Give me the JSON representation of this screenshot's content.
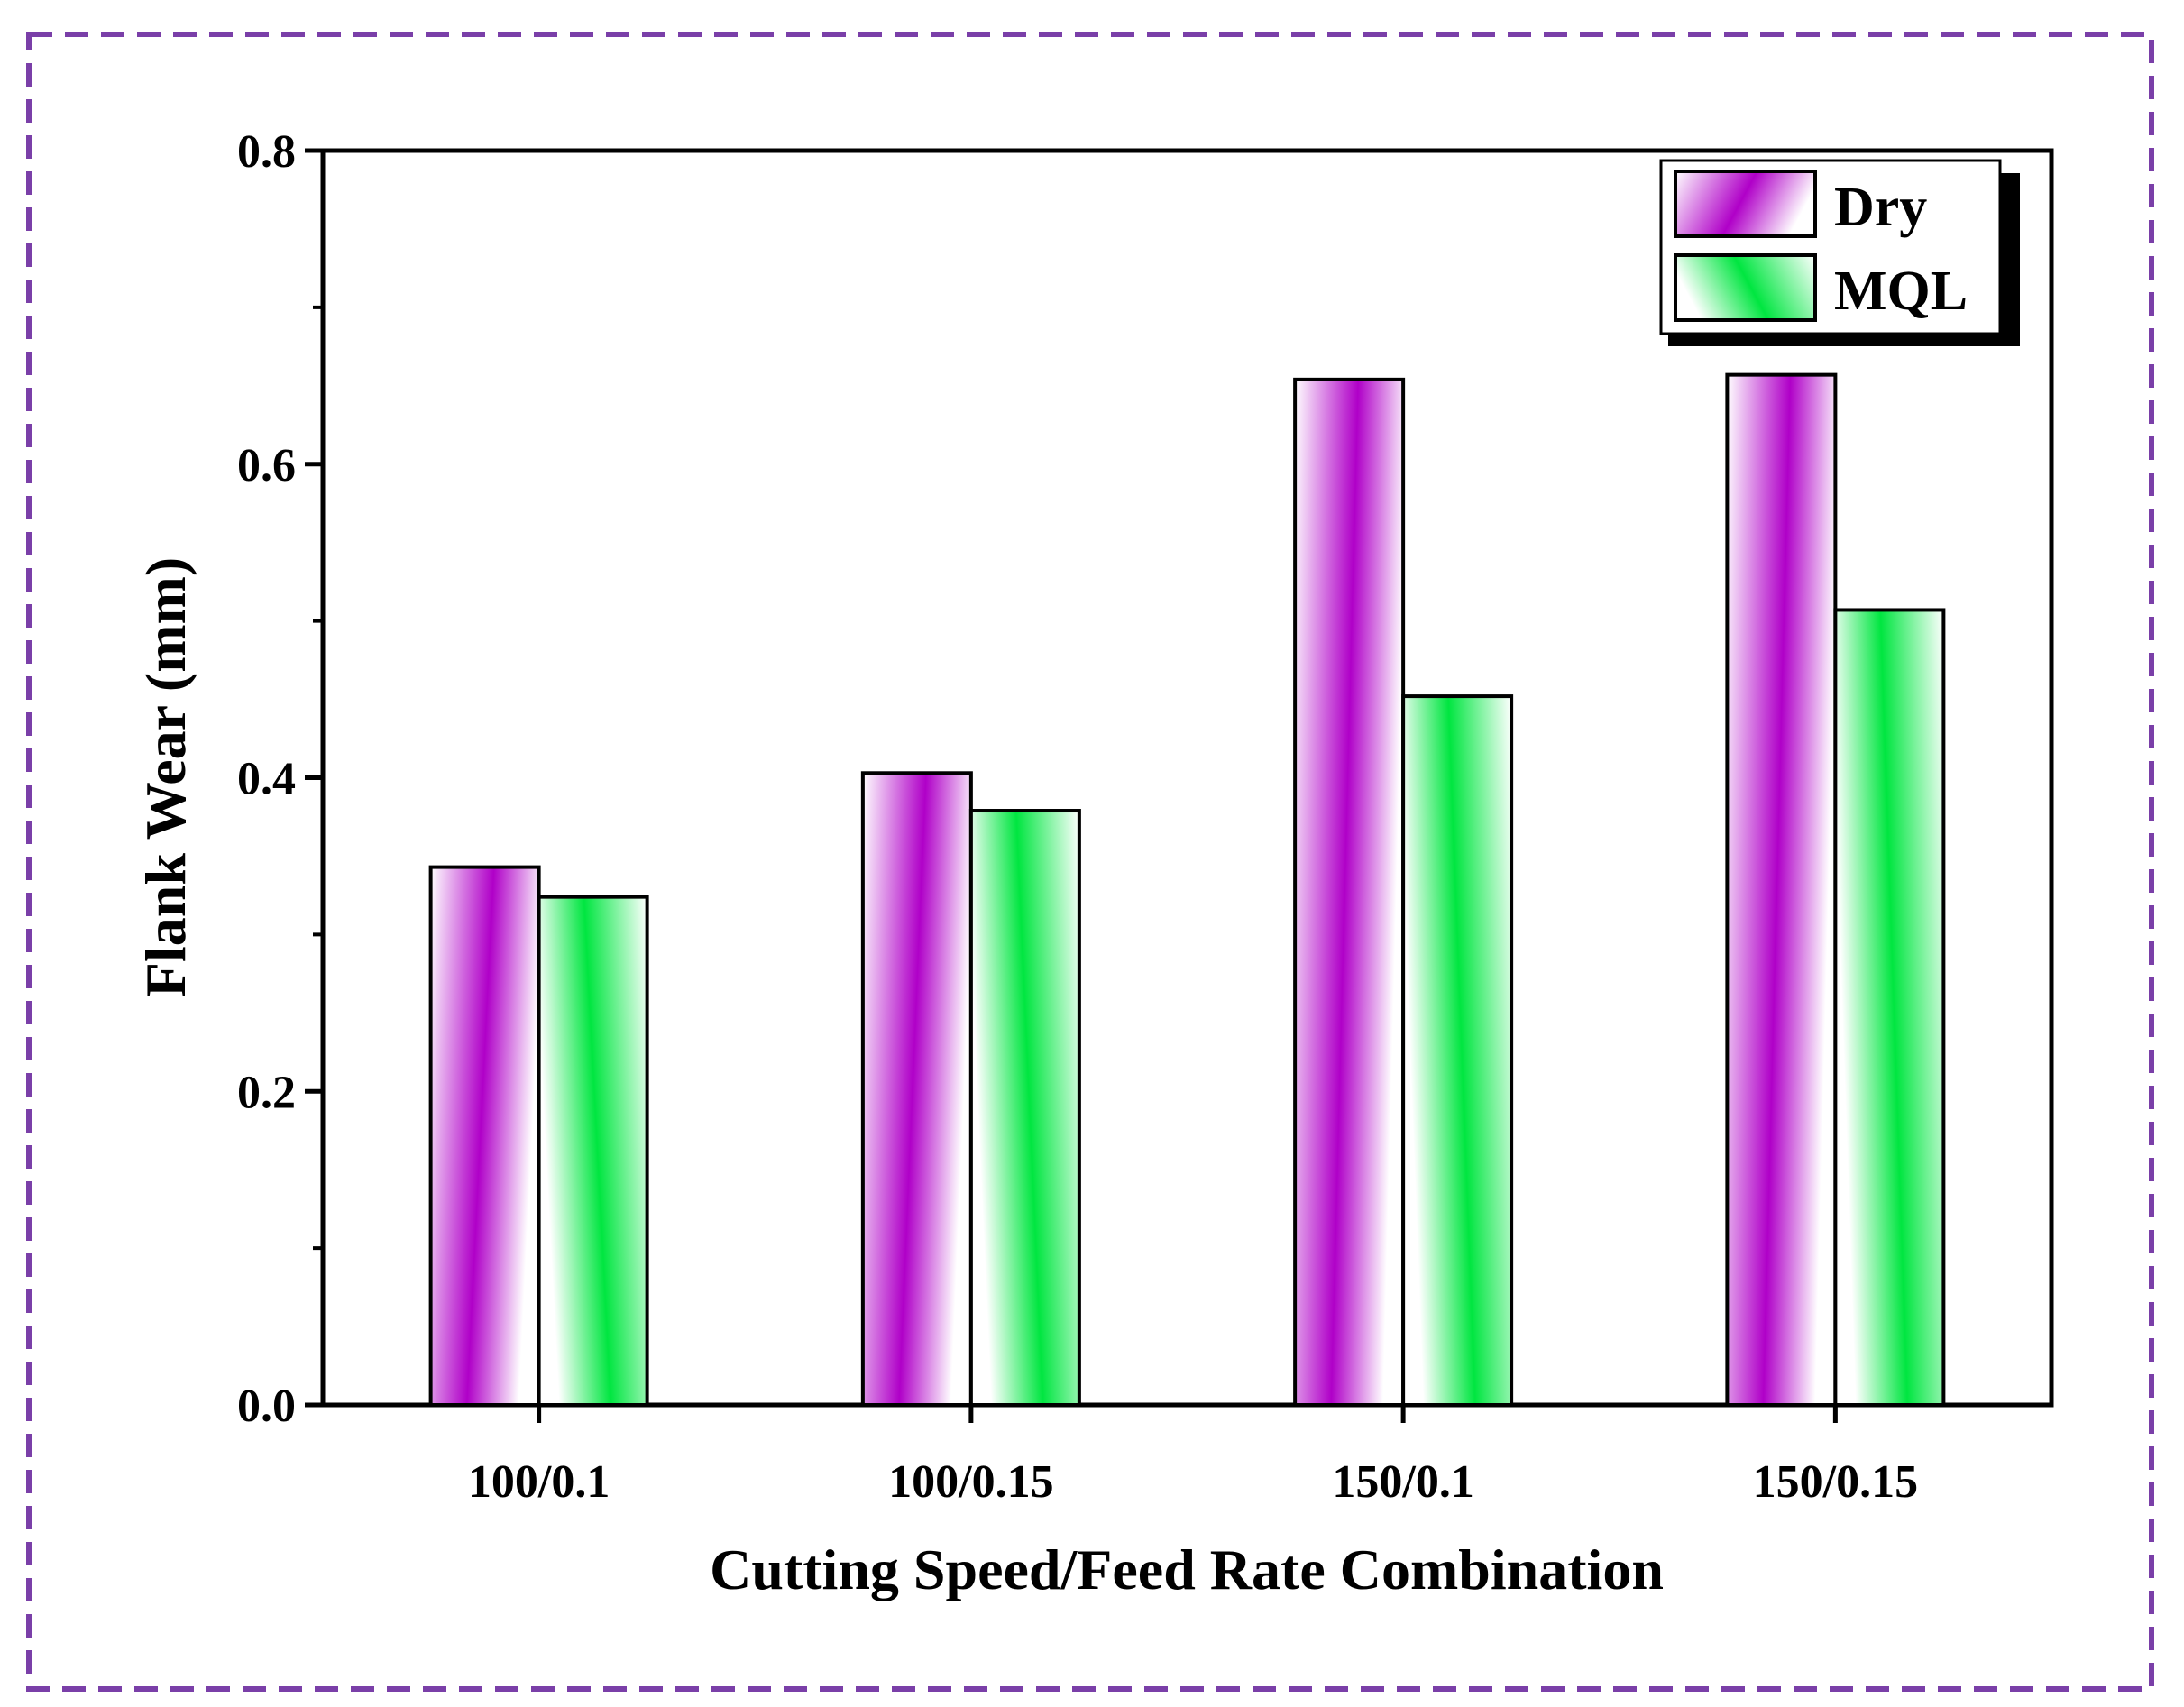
{
  "chart_data": {
    "type": "bar",
    "title": "",
    "xlabel": "Cutting Speed/Feed Rate Combination",
    "ylabel": "Flank Wear (mm)",
    "ylim": [
      0,
      0.8
    ],
    "yticks": [
      "0.0",
      "0.2",
      "0.4",
      "0.6",
      "0.8"
    ],
    "categories": [
      "100/0.1",
      "100/0.15",
      "150/0.1",
      "150/0.15"
    ],
    "series": [
      {
        "name": "Dry",
        "values": [
          0.343,
          0.403,
          0.654,
          0.657
        ]
      },
      {
        "name": "MQL",
        "values": [
          0.324,
          0.379,
          0.452,
          0.507
        ]
      }
    ],
    "grid": false,
    "legend_position": "top-right"
  },
  "colors": {
    "dry": "#b000c8",
    "mql": "#00e640",
    "dry_legend_text": "#b000c8",
    "mql_legend_text": "#00e640",
    "border_dash": "#7a3fa8",
    "axis": "#000000"
  }
}
